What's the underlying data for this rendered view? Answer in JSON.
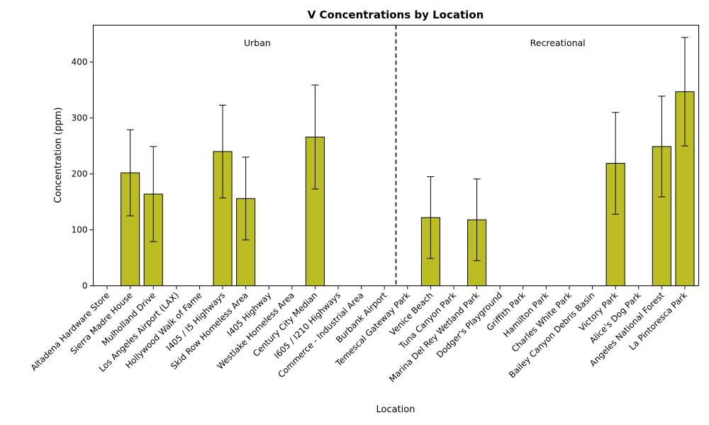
{
  "chart_data": {
    "type": "bar",
    "title": "V Concentrations by Location",
    "xlabel": "Location",
    "ylabel": "Concentration (ppm)",
    "ylim": [
      0,
      466
    ],
    "yticks": [
      0,
      100,
      200,
      300,
      400
    ],
    "grid": false,
    "bar_color": "#bcbd22",
    "categories": [
      "Altadena Hardware Store",
      "Sierra Madre House",
      "Mulholland Drive",
      "Los Angeles Airport (LAX)",
      "Hollywood Walk of Fame",
      "I405 / I5 Highways",
      "Skid Row Homeless Area",
      "I405 Highway",
      "Westlake Homeless Area",
      "Century City Median",
      "I605 / I210 Highways",
      "Commerce - Industrial Area",
      "Burbank Airport",
      "Temescal Gateway Park",
      "Venice Beach",
      "Tuna Canyon Park",
      "Marina Del Rey Wetland Park",
      "Dodger's Playground",
      "Griffith Park",
      "Hamilton Park",
      "Charles White Park",
      "Bailey Canyon Debris Basin",
      "Victory Park",
      "Alice's Dog Park",
      "Angeles National Forest",
      "La Pintoresca Park"
    ],
    "values": [
      null,
      202,
      164,
      null,
      null,
      240,
      156,
      null,
      null,
      266,
      null,
      null,
      null,
      null,
      122,
      null,
      118,
      null,
      null,
      null,
      null,
      null,
      219,
      null,
      249,
      347
    ],
    "errors": [
      null,
      77,
      85,
      null,
      null,
      83,
      74,
      null,
      null,
      93,
      null,
      null,
      null,
      null,
      73,
      null,
      73,
      null,
      null,
      null,
      null,
      null,
      91,
      null,
      90,
      97
    ],
    "divider_after_index": 12,
    "groups": [
      {
        "label": "Urban",
        "x_index": 6.5
      },
      {
        "label": "Recreational",
        "x_index": 19.5
      }
    ]
  }
}
